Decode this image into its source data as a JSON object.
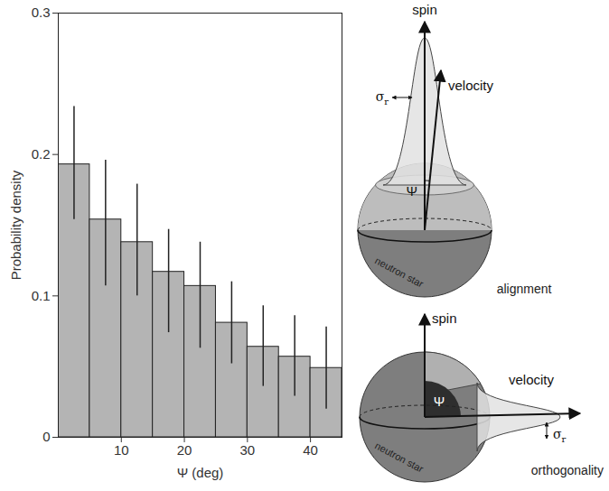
{
  "chart_data": {
    "type": "histogram",
    "xlabel": "Ψ (deg)",
    "ylabel": "Probability density",
    "bins": [
      0,
      5,
      10,
      15,
      20,
      25,
      30,
      35,
      40,
      45
    ],
    "values": [
      0.193,
      0.154,
      0.138,
      0.117,
      0.107,
      0.081,
      0.064,
      0.057,
      0.049
    ],
    "error_bars": {
      "low": [
        0.154,
        0.107,
        0.1,
        0.074,
        0.063,
        0.052,
        0.036,
        0.029,
        0.02
      ],
      "high": [
        0.234,
        0.196,
        0.179,
        0.147,
        0.138,
        0.11,
        0.093,
        0.086,
        0.078
      ]
    },
    "color": "#b4b4b4",
    "xlim": [
      0,
      45
    ],
    "xticks": [
      10,
      20,
      30,
      40
    ],
    "ylim": [
      0,
      0.3
    ],
    "yticks": [
      0,
      0.1,
      0.2,
      0.3
    ],
    "grid": false
  },
  "diagrams": [
    {
      "spin_label": "spin",
      "velocity_label": "velocity",
      "sigma": "σ",
      "sigma_subscript": "r",
      "angle_label": "Ψ",
      "star_label": "neutron star",
      "caption": "alignment"
    },
    {
      "spin_label": "spin",
      "velocity_label": "velocity",
      "sigma": "σ",
      "sigma_subscript": "r",
      "angle_label": "Ψ",
      "star_label": "neutron star",
      "caption": "orthogonality"
    }
  ]
}
